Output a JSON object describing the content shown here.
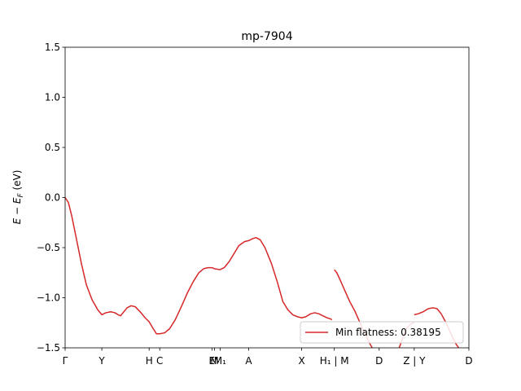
{
  "chart_data": {
    "type": "line",
    "title": "mp-7904",
    "ylabel": "E − E",
    "ylabel_sub": "F",
    "ylabel_unit": " (eV)",
    "ylim": [
      -1.5,
      1.5
    ],
    "yticks": [
      1.5,
      1.0,
      0.5,
      0.0,
      -0.5,
      -1.0,
      -1.5
    ],
    "ytick_labels": [
      "1.5",
      "1.0",
      "0.5",
      "0.0",
      "−0.5",
      "−1.0",
      "−1.5"
    ],
    "xlim": [
      0,
      1
    ],
    "xticks": [
      {
        "x": 0.0,
        "label": "Γ"
      },
      {
        "x": 0.0909,
        "label": "Y"
      },
      {
        "x": 0.2081,
        "label": "H"
      },
      {
        "x": 0.2343,
        "label": "C"
      },
      {
        "x": 0.3636,
        "label": "E"
      },
      {
        "x": 0.3697,
        "label": "M"
      },
      {
        "x": 0.3838,
        "label": "M₁"
      },
      {
        "x": 0.4545,
        "label": "A"
      },
      {
        "x": 0.5859,
        "label": "X"
      },
      {
        "x": 0.6667,
        "label": "H₁ | M"
      },
      {
        "x": 0.7778,
        "label": "D"
      },
      {
        "x": 0.8646,
        "label": "Z | Y"
      },
      {
        "x": 1.0,
        "label": "D"
      }
    ],
    "series": [
      {
        "name": "Min flatness: 0.38195",
        "color": "#d62728",
        "segments": [
          [
            [
              0.0,
              0.0
            ],
            [
              0.0081,
              -0.05
            ],
            [
              0.0162,
              -0.18
            ],
            [
              0.0283,
              -0.42
            ],
            [
              0.0404,
              -0.66
            ],
            [
              0.0525,
              -0.87
            ],
            [
              0.0667,
              -1.02
            ],
            [
              0.0808,
              -1.12
            ],
            [
              0.0909,
              -1.17
            ],
            [
              0.101,
              -1.15
            ],
            [
              0.1131,
              -1.14
            ],
            [
              0.1232,
              -1.15
            ],
            [
              0.1313,
              -1.17
            ],
            [
              0.1374,
              -1.18
            ],
            [
              0.1434,
              -1.15
            ],
            [
              0.1535,
              -1.1
            ],
            [
              0.1636,
              -1.08
            ],
            [
              0.1737,
              -1.09
            ],
            [
              0.1879,
              -1.15
            ],
            [
              0.198,
              -1.2
            ],
            [
              0.2081,
              -1.24
            ],
            [
              0.2182,
              -1.31
            ],
            [
              0.2263,
              -1.36
            ],
            [
              0.2343,
              -1.36
            ],
            [
              0.2465,
              -1.35
            ],
            [
              0.2586,
              -1.31
            ],
            [
              0.2727,
              -1.22
            ],
            [
              0.2889,
              -1.08
            ],
            [
              0.303,
              -0.95
            ],
            [
              0.3172,
              -0.84
            ],
            [
              0.3313,
              -0.75
            ],
            [
              0.3434,
              -0.71
            ],
            [
              0.3535,
              -0.7
            ],
            [
              0.3636,
              -0.7
            ],
            [
              0.3697,
              -0.71
            ],
            [
              0.3838,
              -0.72
            ],
            [
              0.3939,
              -0.7
            ],
            [
              0.4061,
              -0.64
            ],
            [
              0.4182,
              -0.56
            ],
            [
              0.4303,
              -0.48
            ],
            [
              0.4444,
              -0.44
            ],
            [
              0.4545,
              -0.43
            ],
            [
              0.4646,
              -0.41
            ],
            [
              0.4727,
              -0.4
            ],
            [
              0.4828,
              -0.42
            ],
            [
              0.4949,
              -0.5
            ],
            [
              0.5111,
              -0.66
            ],
            [
              0.5253,
              -0.84
            ],
            [
              0.5394,
              -1.04
            ],
            [
              0.5515,
              -1.12
            ],
            [
              0.5636,
              -1.17
            ],
            [
              0.5758,
              -1.19
            ],
            [
              0.5859,
              -1.2
            ],
            [
              0.596,
              -1.19
            ],
            [
              0.6081,
              -1.16
            ],
            [
              0.6182,
              -1.15
            ],
            [
              0.6283,
              -1.16
            ],
            [
              0.6384,
              -1.18
            ],
            [
              0.6485,
              -1.2
            ],
            [
              0.6566,
              -1.21
            ],
            [
              0.6606,
              -1.22
            ]
          ],
          [
            [
              0.6667,
              -0.72
            ],
            [
              0.6727,
              -0.75
            ],
            [
              0.6808,
              -0.82
            ],
            [
              0.6929,
              -0.93
            ],
            [
              0.7051,
              -1.04
            ],
            [
              0.7172,
              -1.13
            ],
            [
              0.7293,
              -1.24
            ],
            [
              0.7414,
              -1.35
            ],
            [
              0.7535,
              -1.45
            ],
            [
              0.7606,
              -1.5
            ]
          ],
          [
            [
              0.8273,
              -1.5
            ],
            [
              0.8364,
              -1.4
            ],
            [
              0.8465,
              -1.3
            ],
            [
              0.8566,
              -1.26
            ],
            [
              0.8646,
              -1.25
            ]
          ],
          [
            [
              0.8646,
              -1.17
            ],
            [
              0.8747,
              -1.16
            ],
            [
              0.8869,
              -1.14
            ],
            [
              0.899,
              -1.11
            ],
            [
              0.9111,
              -1.1
            ],
            [
              0.9212,
              -1.11
            ],
            [
              0.9313,
              -1.16
            ],
            [
              0.9434,
              -1.25
            ],
            [
              0.9576,
              -1.38
            ],
            [
              0.9677,
              -1.46
            ],
            [
              0.9747,
              -1.5
            ]
          ]
        ]
      }
    ],
    "legend": {
      "location": "lower-right",
      "label": "Min flatness: 0.38195"
    }
  }
}
